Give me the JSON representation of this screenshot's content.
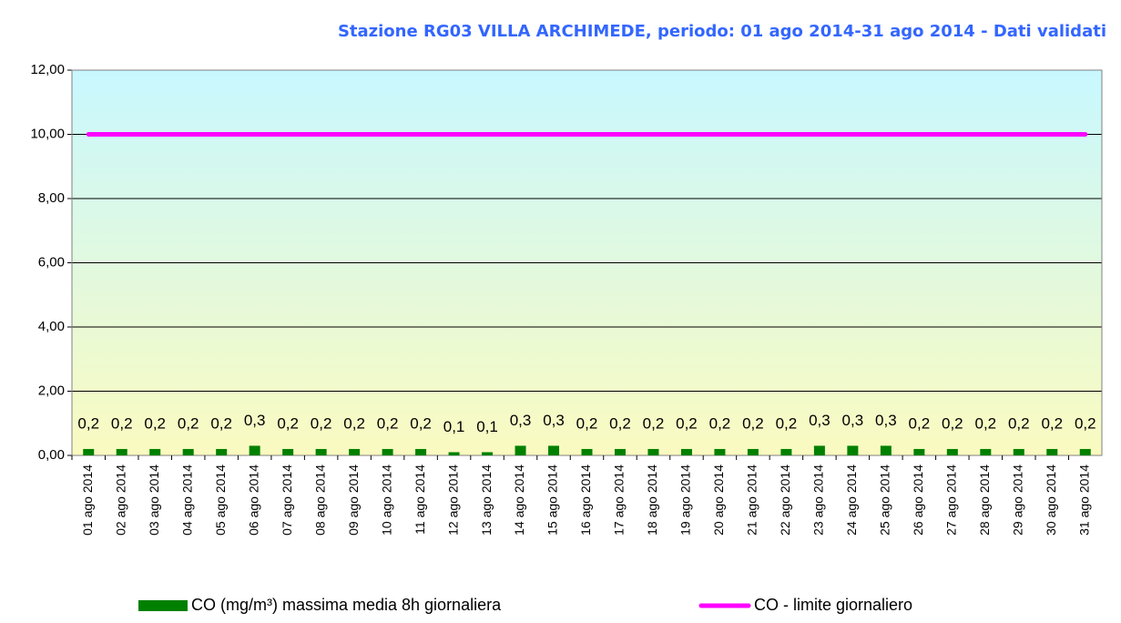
{
  "chart_data": {
    "type": "bar",
    "title": "Stazione RG03 VILLA ARCHIMEDE, periodo: 01 ago 2014-31 ago 2014 - Dati validati",
    "categories": [
      "01 ago 2014",
      "02 ago 2014",
      "03 ago 2014",
      "04 ago 2014",
      "05 ago 2014",
      "06 ago 2014",
      "07 ago 2014",
      "08 ago 2014",
      "09 ago 2014",
      "10 ago 2014",
      "11 ago 2014",
      "12 ago 2014",
      "13 ago 2014",
      "14 ago 2014",
      "15 ago 2014",
      "16 ago 2014",
      "17 ago 2014",
      "18 ago 2014",
      "19 ago 2014",
      "20 ago 2014",
      "21 ago 2014",
      "22 ago 2014",
      "23 ago 2014",
      "24 ago 2014",
      "25 ago 2014",
      "26 ago 2014",
      "27 ago 2014",
      "28 ago 2014",
      "29 ago 2014",
      "30 ago 2014",
      "31 ago 2014"
    ],
    "series": [
      {
        "name": "CO (mg/m³) massima media 8h giornaliera",
        "type": "bar",
        "color": "#008000",
        "values": [
          0.2,
          0.2,
          0.2,
          0.2,
          0.2,
          0.3,
          0.2,
          0.2,
          0.2,
          0.2,
          0.2,
          0.1,
          0.1,
          0.3,
          0.3,
          0.2,
          0.2,
          0.2,
          0.2,
          0.2,
          0.2,
          0.2,
          0.3,
          0.3,
          0.3,
          0.2,
          0.2,
          0.2,
          0.2,
          0.2,
          0.2
        ],
        "value_labels": [
          "0,2",
          "0,2",
          "0,2",
          "0,2",
          "0,2",
          "0,3",
          "0,2",
          "0,2",
          "0,2",
          "0,2",
          "0,2",
          "0,1",
          "0,1",
          "0,3",
          "0,3",
          "0,2",
          "0,2",
          "0,2",
          "0,2",
          "0,2",
          "0,2",
          "0,2",
          "0,3",
          "0,3",
          "0,3",
          "0,2",
          "0,2",
          "0,2",
          "0,2",
          "0,2",
          "0,2"
        ]
      },
      {
        "name": "CO - limite giornaliero",
        "type": "line",
        "color": "#ff00ff",
        "values": [
          10,
          10,
          10,
          10,
          10,
          10,
          10,
          10,
          10,
          10,
          10,
          10,
          10,
          10,
          10,
          10,
          10,
          10,
          10,
          10,
          10,
          10,
          10,
          10,
          10,
          10,
          10,
          10,
          10,
          10,
          10
        ]
      }
    ],
    "ylim": [
      0,
      12
    ],
    "yticks": [
      {
        "value": 0,
        "label": "0,00"
      },
      {
        "value": 2,
        "label": "2,00"
      },
      {
        "value": 4,
        "label": "4,00"
      },
      {
        "value": 6,
        "label": "6,00"
      },
      {
        "value": 8,
        "label": "8,00"
      },
      {
        "value": 10,
        "label": "10,00"
      },
      {
        "value": 12,
        "label": "12,00"
      }
    ],
    "grid": true,
    "legend": "bottom"
  }
}
